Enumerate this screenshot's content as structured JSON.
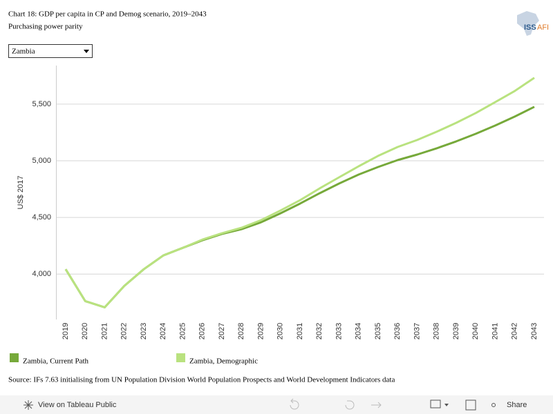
{
  "chart_data": {
    "type": "line",
    "title": "Chart 18: GDP per capita in CP and Demog scenario, 2019–2043",
    "subtitle": "Purchasing power parity",
    "selector": "Zambia",
    "logo": {
      "left": "ISS",
      "right": "AFI"
    },
    "y_label": "US$ 2017",
    "source": "Source: IFs 7.63 initialising from UN Population Division World Population Prospects and World Development Indicators data",
    "toolbar": {
      "view": "View on Tableau Public",
      "share": "Share"
    },
    "grid": true,
    "categories": [
      "2019",
      "2020",
      "2021",
      "2022",
      "2023",
      "2024",
      "2025",
      "2026",
      "2027",
      "2028",
      "2029",
      "2030",
      "2031",
      "2032",
      "2033",
      "2034",
      "2035",
      "2036",
      "2037",
      "2038",
      "2039",
      "2040",
      "2041",
      "2042",
      "2043"
    ],
    "ylim": [
      3600,
      5840
    ],
    "yticks": [
      {
        "value": 4000,
        "label": "4,000"
      },
      {
        "value": 4500,
        "label": "4,500"
      },
      {
        "value": 5000,
        "label": "5,000"
      },
      {
        "value": 5500,
        "label": "5,500"
      }
    ],
    "series": [
      {
        "name": "Zambia, Current Path",
        "color": "#76a93a",
        "values": [
          4043,
          3762,
          3707,
          3896,
          4043,
          4165,
          4232,
          4299,
          4354,
          4396,
          4457,
          4537,
          4622,
          4713,
          4799,
          4878,
          4945,
          5006,
          5055,
          5110,
          5171,
          5238,
          5311,
          5390,
          5476
        ]
      },
      {
        "name": "Zambia, Demographic",
        "color": "#b9e27f",
        "values": [
          4043,
          3762,
          3707,
          3896,
          4043,
          4165,
          4232,
          4305,
          4360,
          4409,
          4476,
          4561,
          4652,
          4756,
          4854,
          4951,
          5043,
          5122,
          5183,
          5256,
          5335,
          5421,
          5518,
          5616,
          5732
        ]
      }
    ]
  }
}
